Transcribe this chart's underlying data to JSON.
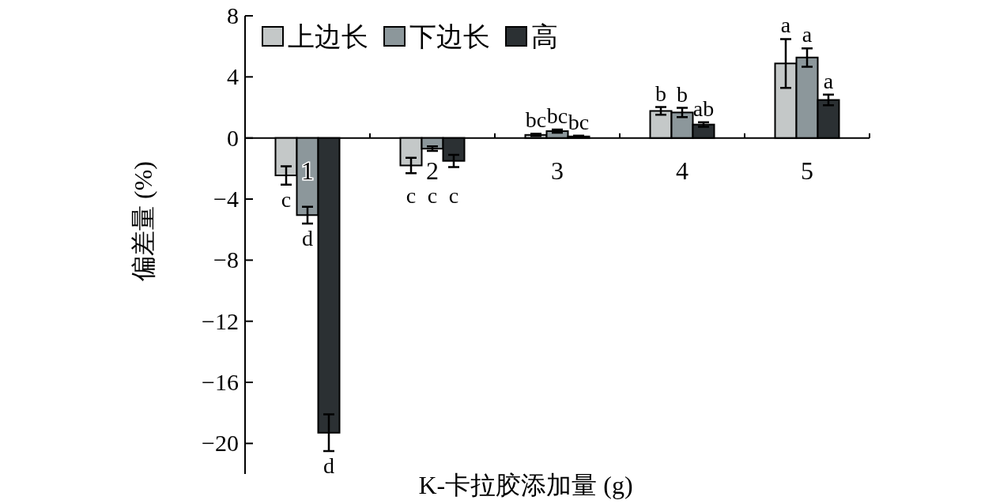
{
  "chart_data": {
    "type": "bar",
    "xlabel": "K-卡拉胶添加量 (g)",
    "ylabel": "偏差量 (%)",
    "categories": [
      "1",
      "2",
      "3",
      "4",
      "5"
    ],
    "series": [
      {
        "name": "上边长",
        "color": "#c4c8c8",
        "values": [
          -2.45,
          -1.8,
          0.2,
          1.77,
          4.88
        ],
        "errors": [
          0.6,
          0.5,
          0.08,
          0.25,
          1.6
        ],
        "value_labels": [
          "c",
          "c",
          "bc",
          "b",
          "a"
        ]
      },
      {
        "name": "下边长",
        "color": "#8c979b",
        "values": [
          -5.05,
          -0.7,
          0.45,
          1.67,
          5.27
        ],
        "errors": [
          0.55,
          0.15,
          0.1,
          0.3,
          0.6
        ],
        "value_labels": [
          "d",
          "c",
          "bc",
          "b",
          "a"
        ]
      },
      {
        "name": "高",
        "color": "#2b3033",
        "values": [
          -19.3,
          -1.5,
          0.1,
          0.88,
          2.49
        ],
        "errors": [
          1.2,
          0.4,
          0.05,
          0.15,
          0.35
        ],
        "value_labels": [
          "d",
          "c",
          "bc",
          "ab",
          "a"
        ]
      }
    ],
    "ylim": [
      -22,
      8
    ],
    "yticks": [
      {
        "value": -20,
        "label": "−20"
      },
      {
        "value": -16,
        "label": "−16"
      },
      {
        "value": -12,
        "label": "−12"
      },
      {
        "value": -8,
        "label": "−8"
      },
      {
        "value": -4,
        "label": "−4"
      },
      0,
      4,
      8
    ],
    "legend": "top left",
    "grid": false
  }
}
